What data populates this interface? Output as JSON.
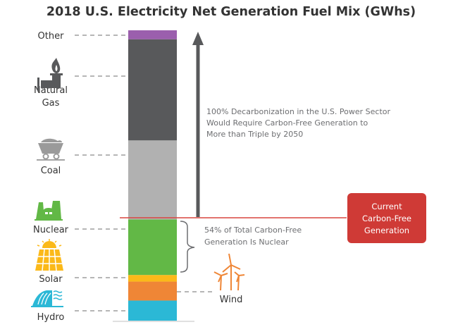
{
  "chart_data": {
    "type": "bar",
    "subtype": "single-stacked-bar",
    "title": "2018 U.S. Electricity Net Generation Fuel Mix (GWhs)",
    "xlabel": "",
    "ylabel": "",
    "units": "GWh",
    "grid": false,
    "stack_order_bottom_to_top": [
      "Hydro",
      "Wind",
      "Solar",
      "Nuclear",
      "Coal",
      "Natural Gas",
      "Other"
    ],
    "segments": [
      {
        "name": "Hydro",
        "value": 292000,
        "color": "#2bb8d6",
        "icon": "hydro-dam-icon",
        "label_side": "left"
      },
      {
        "name": "Wind",
        "value": 275000,
        "color": "#ef8636",
        "icon": "wind-turbine-icon",
        "label_side": "right"
      },
      {
        "name": "Solar",
        "value": 96000,
        "color": "#fbb919",
        "icon": "solar-panel-icon",
        "label_side": "left"
      },
      {
        "name": "Nuclear",
        "value": 807000,
        "color": "#62b846",
        "icon": "nuclear-plant-icon",
        "label_side": "left"
      },
      {
        "name": "Coal",
        "value": 1146000,
        "color": "#b1b1b1",
        "icon": "coal-cart-icon",
        "label_side": "left"
      },
      {
        "name": "Natural Gas",
        "value": 1468000,
        "color": "#58595b",
        "icon": "gas-pipe-flame-icon",
        "label_side": "left",
        "label_lines": [
          "Natural",
          "Gas"
        ]
      },
      {
        "name": "Other",
        "value": 130000,
        "color": "#9b5fad",
        "icon": "",
        "label_side": "left"
      }
    ],
    "annotations": {
      "arrow_text": [
        "100% Decarbonization in the U.S. Power Sector",
        "Would Require Carbon-Free Generation to",
        "More than Triple by 2050"
      ],
      "brace_text": [
        "54% of Total Carbon-Free",
        "Generation Is Nuclear"
      ],
      "box_text": [
        "Current",
        "Carbon-Free",
        "Generation"
      ],
      "box_color": "#cf3a36",
      "line_color": "#d9453f",
      "arrow_color": "#58595b"
    }
  }
}
